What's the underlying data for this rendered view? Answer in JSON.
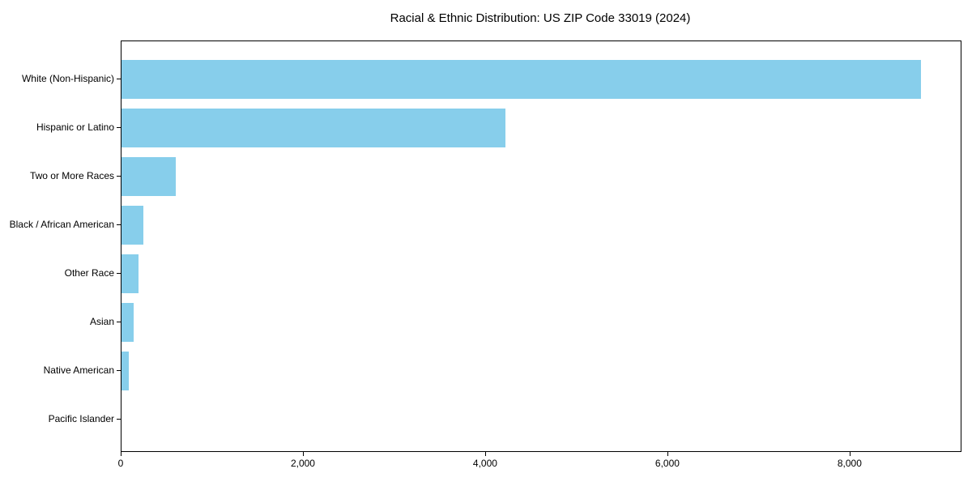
{
  "chart_data": {
    "type": "bar",
    "orientation": "horizontal",
    "title": "Racial & Ethnic Distribution: US ZIP Code 33019 (2024)",
    "categories": [
      "White (Non-Hispanic)",
      "Hispanic or Latino",
      "Two or More Races",
      "Black / African American",
      "Other Race",
      "Asian",
      "Native American",
      "Pacific Islander"
    ],
    "values": [
      8770,
      4210,
      600,
      240,
      190,
      135,
      78,
      0
    ],
    "xlabel": "",
    "ylabel": "",
    "xlim": [
      0,
      9210
    ],
    "xticks": [
      0,
      2000,
      4000,
      6000,
      8000
    ],
    "xtick_labels": [
      "0",
      "2,000",
      "4,000",
      "6,000",
      "8,000"
    ],
    "bar_color": "#87CEEB",
    "axis_color": "#000000",
    "background": "#ffffff",
    "grid": false,
    "legend": null
  }
}
